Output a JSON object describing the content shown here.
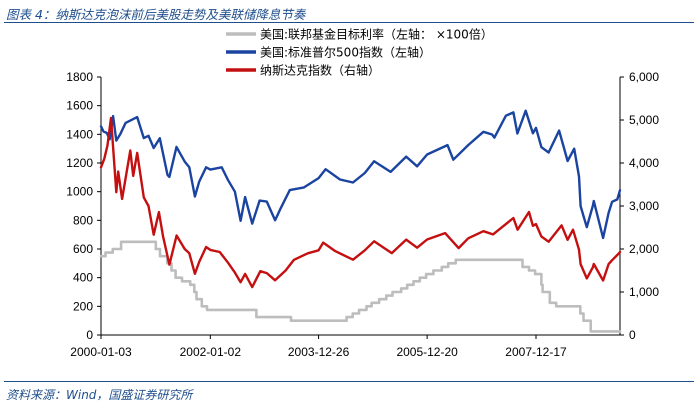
{
  "figure": {
    "title": "图表 4：纳斯达克泡沫前后美股走势及美联储降息节奏",
    "source": "资料来源：Wind，国盛证券研究所"
  },
  "chart_data": {
    "type": "line",
    "title": "图表 4：纳斯达克泡沫前后美股走势及美联储降息节奏",
    "xlabel": "",
    "ylabel": "",
    "x_tick_labels": [
      "2000-01-03",
      "2002-01-02",
      "2003-12-26",
      "2005-12-20",
      "2007-12-17"
    ],
    "x_range": [
      "2000-01-03",
      "2009-06-30"
    ],
    "y_left": {
      "range": [
        0,
        1800
      ],
      "ticks": [
        0,
        200,
        400,
        600,
        800,
        1000,
        1200,
        1400,
        1600,
        1800
      ]
    },
    "y_right": {
      "range": [
        0,
        6000
      ],
      "ticks": [
        "0",
        "1,000",
        "2,000",
        "3,000",
        "4,000",
        "5,000",
        "6,000"
      ]
    },
    "legend": {
      "placement": "top-center"
    },
    "grid": false,
    "series": [
      {
        "name": "美国:联邦基金目标利率（左轴： ×100倍）",
        "axis": "left",
        "color": "#bdbdbd",
        "step": true,
        "points": [
          [
            "2000-01-03",
            550
          ],
          [
            "2000-02-02",
            575
          ],
          [
            "2000-03-21",
            600
          ],
          [
            "2000-05-16",
            650
          ],
          [
            "2001-01-03",
            600
          ],
          [
            "2001-01-31",
            550
          ],
          [
            "2001-03-20",
            500
          ],
          [
            "2001-04-18",
            450
          ],
          [
            "2001-05-15",
            400
          ],
          [
            "2001-06-27",
            375
          ],
          [
            "2001-08-21",
            350
          ],
          [
            "2001-09-17",
            300
          ],
          [
            "2001-10-02",
            250
          ],
          [
            "2001-11-06",
            200
          ],
          [
            "2001-12-11",
            175
          ],
          [
            "2002-11-06",
            125
          ],
          [
            "2003-06-25",
            100
          ],
          [
            "2004-06-30",
            125
          ],
          [
            "2004-08-10",
            150
          ],
          [
            "2004-09-21",
            175
          ],
          [
            "2004-11-10",
            200
          ],
          [
            "2004-12-14",
            225
          ],
          [
            "2005-02-02",
            250
          ],
          [
            "2005-03-22",
            275
          ],
          [
            "2005-05-03",
            300
          ],
          [
            "2005-06-30",
            325
          ],
          [
            "2005-08-09",
            350
          ],
          [
            "2005-09-20",
            375
          ],
          [
            "2005-11-01",
            400
          ],
          [
            "2005-12-13",
            425
          ],
          [
            "2006-01-31",
            450
          ],
          [
            "2006-03-28",
            475
          ],
          [
            "2006-05-10",
            500
          ],
          [
            "2006-06-29",
            525
          ],
          [
            "2007-09-18",
            475
          ],
          [
            "2007-10-31",
            450
          ],
          [
            "2007-12-11",
            425
          ],
          [
            "2008-01-22",
            350
          ],
          [
            "2008-01-30",
            300
          ],
          [
            "2008-03-18",
            225
          ],
          [
            "2008-04-30",
            200
          ],
          [
            "2008-10-08",
            150
          ],
          [
            "2008-10-29",
            100
          ],
          [
            "2008-12-16",
            25
          ],
          [
            "2009-06-30",
            25
          ]
        ]
      },
      {
        "name": "美国:标准普尔500指数（左轴）",
        "axis": "left",
        "color": "#1a44a0",
        "points": [
          [
            "2000-01-03",
            1455
          ],
          [
            "2000-01-20",
            1420
          ],
          [
            "2000-02-10",
            1410
          ],
          [
            "2000-03-01",
            1365
          ],
          [
            "2000-03-24",
            1527
          ],
          [
            "2000-04-14",
            1356
          ],
          [
            "2000-05-10",
            1400
          ],
          [
            "2000-06-15",
            1480
          ],
          [
            "2000-07-15",
            1495
          ],
          [
            "2000-09-01",
            1520
          ],
          [
            "2000-10-15",
            1374
          ],
          [
            "2000-11-15",
            1390
          ],
          [
            "2000-12-20",
            1305
          ],
          [
            "2001-01-30",
            1373
          ],
          [
            "2001-03-22",
            1117
          ],
          [
            "2001-04-04",
            1103
          ],
          [
            "2001-05-21",
            1312
          ],
          [
            "2001-07-15",
            1210
          ],
          [
            "2001-08-15",
            1170
          ],
          [
            "2001-09-21",
            966
          ],
          [
            "2001-10-20",
            1070
          ],
          [
            "2001-12-05",
            1170
          ],
          [
            "2002-01-02",
            1154
          ],
          [
            "2002-03-19",
            1170
          ],
          [
            "2002-05-01",
            1080
          ],
          [
            "2002-06-15",
            1000
          ],
          [
            "2002-07-23",
            797
          ],
          [
            "2002-08-22",
            962
          ],
          [
            "2002-10-09",
            777
          ],
          [
            "2002-11-27",
            938
          ],
          [
            "2003-01-14",
            931
          ],
          [
            "2003-03-11",
            801
          ],
          [
            "2003-04-20",
            890
          ],
          [
            "2003-06-17",
            1011
          ],
          [
            "2003-09-20",
            1030
          ],
          [
            "2003-12-26",
            1095
          ],
          [
            "2004-02-11",
            1157
          ],
          [
            "2004-05-17",
            1085
          ],
          [
            "2004-08-12",
            1064
          ],
          [
            "2004-10-30",
            1130
          ],
          [
            "2004-12-31",
            1212
          ],
          [
            "2005-04-20",
            1138
          ],
          [
            "2005-08-02",
            1245
          ],
          [
            "2005-10-14",
            1177
          ],
          [
            "2005-12-20",
            1259
          ],
          [
            "2006-05-05",
            1325
          ],
          [
            "2006-06-13",
            1223
          ],
          [
            "2006-09-20",
            1325
          ],
          [
            "2006-12-31",
            1418
          ],
          [
            "2007-02-27",
            1399
          ],
          [
            "2007-03-14",
            1377
          ],
          [
            "2007-05-30",
            1530
          ],
          [
            "2007-07-19",
            1553
          ],
          [
            "2007-08-15",
            1406
          ],
          [
            "2007-10-09",
            1565
          ],
          [
            "2007-11-26",
            1407
          ],
          [
            "2007-12-17",
            1445
          ],
          [
            "2008-01-22",
            1310
          ],
          [
            "2008-03-10",
            1273
          ],
          [
            "2008-05-19",
            1426
          ],
          [
            "2008-07-15",
            1214
          ],
          [
            "2008-08-28",
            1300
          ],
          [
            "2008-09-29",
            1106
          ],
          [
            "2008-10-10",
            899
          ],
          [
            "2008-11-20",
            752
          ],
          [
            "2008-12-31",
            903
          ],
          [
            "2009-01-06",
            935
          ],
          [
            "2009-03-09",
            677
          ],
          [
            "2009-04-15",
            852
          ],
          [
            "2009-05-08",
            929
          ],
          [
            "2009-06-12",
            946
          ],
          [
            "2009-06-30",
            1010
          ]
        ]
      },
      {
        "name": "纳斯达克指数（右轴）",
        "axis": "right",
        "color": "#c41010",
        "points": [
          [
            "2000-01-03",
            3900
          ],
          [
            "2000-01-25",
            4100
          ],
          [
            "2000-02-15",
            4400
          ],
          [
            "2000-03-10",
            5048
          ],
          [
            "2000-04-14",
            3321
          ],
          [
            "2000-04-27",
            3800
          ],
          [
            "2000-05-23",
            3164
          ],
          [
            "2000-07-17",
            4290
          ],
          [
            "2000-08-05",
            3700
          ],
          [
            "2000-09-01",
            4234
          ],
          [
            "2000-10-15",
            3200
          ],
          [
            "2000-11-15",
            3000
          ],
          [
            "2000-12-20",
            2332
          ],
          [
            "2001-01-24",
            2859
          ],
          [
            "2001-02-20",
            2300
          ],
          [
            "2001-04-04",
            1638
          ],
          [
            "2001-05-22",
            2313
          ],
          [
            "2001-07-15",
            2000
          ],
          [
            "2001-08-15",
            1900
          ],
          [
            "2001-09-21",
            1423
          ],
          [
            "2001-10-20",
            1700
          ],
          [
            "2001-12-05",
            2046
          ],
          [
            "2002-01-02",
            1980
          ],
          [
            "2002-03-06",
            1930
          ],
          [
            "2002-05-01",
            1680
          ],
          [
            "2002-06-15",
            1450
          ],
          [
            "2002-07-23",
            1229
          ],
          [
            "2002-08-22",
            1420
          ],
          [
            "2002-10-09",
            1114
          ],
          [
            "2002-12-02",
            1484
          ],
          [
            "2003-01-14",
            1440
          ],
          [
            "2003-03-11",
            1271
          ],
          [
            "2003-05-20",
            1500
          ],
          [
            "2003-07-15",
            1750
          ],
          [
            "2003-10-15",
            1900
          ],
          [
            "2003-12-26",
            1970
          ],
          [
            "2004-01-26",
            2150
          ],
          [
            "2004-04-15",
            1950
          ],
          [
            "2004-08-12",
            1752
          ],
          [
            "2004-10-30",
            1970
          ],
          [
            "2004-12-31",
            2178
          ],
          [
            "2005-04-28",
            1904
          ],
          [
            "2005-08-02",
            2218
          ],
          [
            "2005-10-14",
            2030
          ],
          [
            "2005-12-20",
            2220
          ],
          [
            "2006-04-19",
            2370
          ],
          [
            "2006-07-18",
            2020
          ],
          [
            "2006-09-20",
            2250
          ],
          [
            "2006-12-31",
            2415
          ],
          [
            "2007-03-05",
            2340
          ],
          [
            "2007-07-19",
            2720
          ],
          [
            "2007-08-16",
            2450
          ],
          [
            "2007-10-31",
            2860
          ],
          [
            "2007-11-26",
            2540
          ],
          [
            "2007-12-17",
            2580
          ],
          [
            "2008-01-22",
            2290
          ],
          [
            "2008-03-10",
            2170
          ],
          [
            "2008-06-05",
            2549
          ],
          [
            "2008-07-15",
            2215
          ],
          [
            "2008-08-20",
            2450
          ],
          [
            "2008-09-29",
            1983
          ],
          [
            "2008-10-10",
            1650
          ],
          [
            "2008-11-20",
            1316
          ],
          [
            "2008-12-31",
            1577
          ],
          [
            "2009-01-06",
            1652
          ],
          [
            "2009-03-09",
            1268
          ],
          [
            "2009-04-15",
            1650
          ],
          [
            "2009-05-08",
            1740
          ],
          [
            "2009-06-12",
            1860
          ],
          [
            "2009-06-30",
            1930
          ]
        ]
      }
    ]
  }
}
